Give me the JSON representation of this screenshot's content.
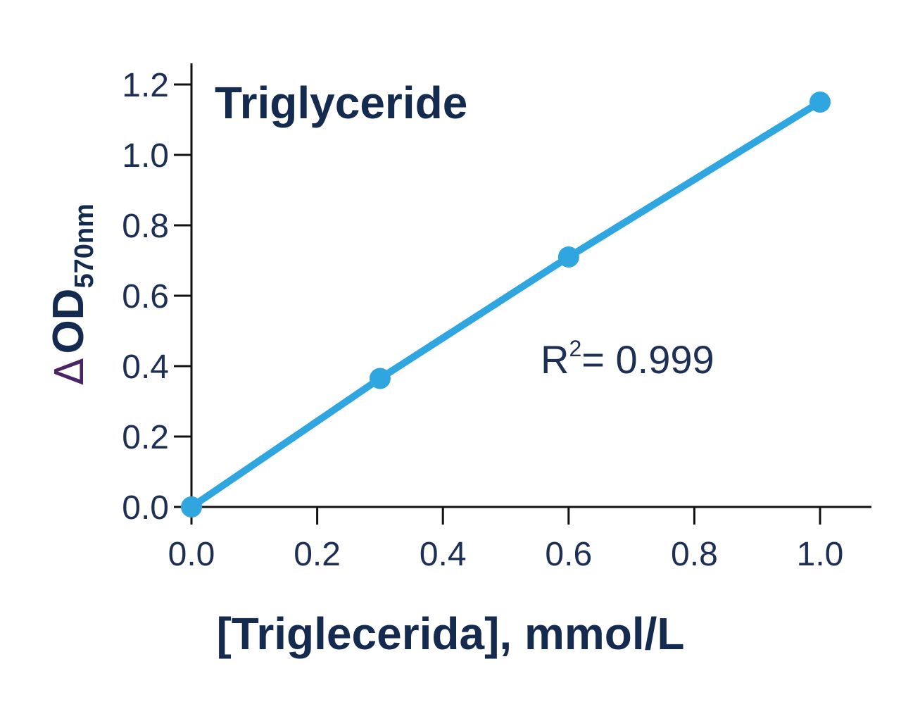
{
  "chart_data": {
    "type": "line",
    "title": "Triglyceride",
    "xlabel": "[Triglecerida], mmol/L",
    "ylabel": {
      "delta": "Δ",
      "main": "OD",
      "subscript": "570nm"
    },
    "xlim": [
      0.0,
      1.0
    ],
    "ylim": [
      0.0,
      1.2
    ],
    "x_ticks": [
      "0.0",
      "0.2",
      "0.4",
      "0.6",
      "0.8",
      "1.0"
    ],
    "y_ticks": [
      "0.0",
      "0.2",
      "0.4",
      "0.6",
      "0.8",
      "1.0",
      "1.2"
    ],
    "series": [
      {
        "x": [
          0.0,
          0.3,
          0.6,
          1.0
        ],
        "y": [
          0.0,
          0.365,
          0.71,
          1.15
        ]
      }
    ],
    "annotation": {
      "r": "R",
      "sup": "2",
      "value": "= 0.999"
    },
    "colors": {
      "line": "#2fa6df",
      "axis": "#111111",
      "text": "#142a4f",
      "delta": "#4a2566"
    },
    "grid": false
  }
}
